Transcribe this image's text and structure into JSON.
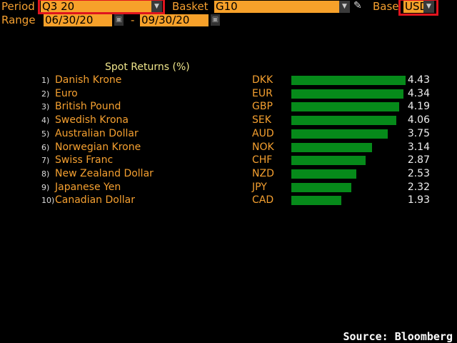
{
  "header": {
    "period_label": "Period",
    "period_value": "Q3 20",
    "basket_label": "Basket",
    "basket_value": "G10",
    "base_label": "Base",
    "base_value": "USD",
    "range_label": "Range",
    "range_start": "06/30/20",
    "range_sep": "-",
    "range_end": "09/30/20"
  },
  "chart_data": {
    "type": "bar",
    "title": "Spot Returns (%)",
    "orientation": "horizontal",
    "categories": [
      "Danish Krone",
      "Euro",
      "British Pound",
      "Swedish Krona",
      "Australian Dollar",
      "Norwegian Krone",
      "Swiss Franc",
      "New Zealand Dollar",
      "Japanese Yen",
      "Canadian Dollar"
    ],
    "ranks": [
      "1)",
      "2)",
      "3)",
      "4)",
      "5)",
      "6)",
      "7)",
      "8)",
      "9)",
      "10)"
    ],
    "codes": [
      "DKK",
      "EUR",
      "GBP",
      "SEK",
      "AUD",
      "NOK",
      "CHF",
      "NZD",
      "JPY",
      "CAD"
    ],
    "values": [
      4.43,
      4.34,
      4.19,
      4.06,
      3.75,
      3.14,
      2.87,
      2.53,
      2.32,
      1.93
    ],
    "labels": [
      "4.43",
      "4.34",
      "4.19",
      "4.06",
      "3.75",
      "3.14",
      "2.87",
      "2.53",
      "2.32",
      "1.93"
    ],
    "color": "#068a1a"
  },
  "footer": {
    "source": "Source: Bloomberg"
  }
}
